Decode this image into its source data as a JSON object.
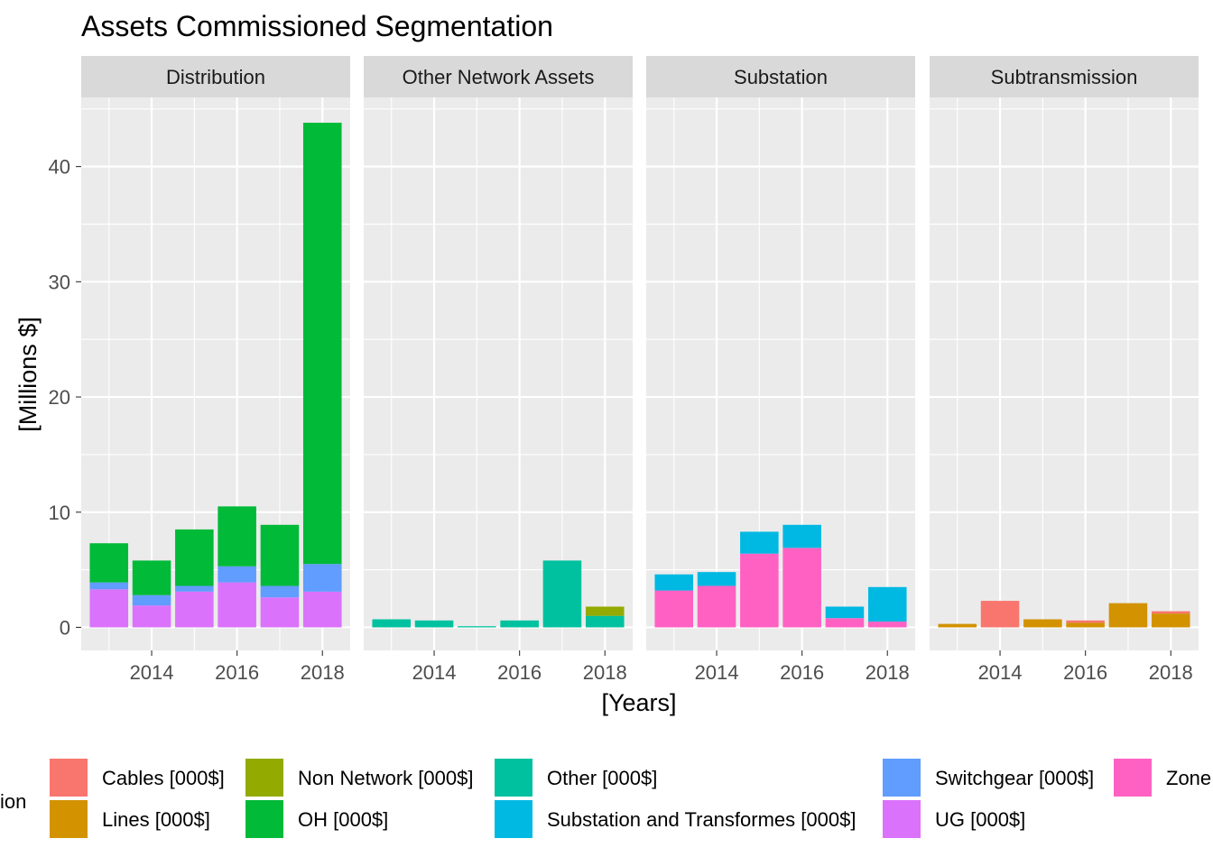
{
  "chart_data": {
    "type": "bar",
    "stacked": true,
    "title": "Assets Commissioned Segmentation",
    "xlabel": "[Years]",
    "ylabel": "[Millions $]",
    "ylim": [
      -2,
      46
    ],
    "xlim": [
      2012.35,
      2018.65
    ],
    "yticks": [
      0,
      10,
      20,
      30,
      40
    ],
    "xticks": [
      2014,
      2016,
      2018
    ],
    "grid": true,
    "legend_position": "bottom",
    "legend_title": "ion",
    "legend": [
      {
        "label": "Cables [000$]",
        "color": "#F8766D"
      },
      {
        "label": "Lines [000$]",
        "color": "#D39200"
      },
      {
        "label": "Non Network [000$]",
        "color": "#93AA00"
      },
      {
        "label": "OH [000$]",
        "color": "#00BA38"
      },
      {
        "label": "Other [000$]",
        "color": "#00C19F"
      },
      {
        "label": "Substation and Transformes [000$]",
        "color": "#00B9E3"
      },
      {
        "label": "Switchgear [000$]",
        "color": "#619CFF"
      },
      {
        "label": "UG [000$]",
        "color": "#DB72FB"
      },
      {
        "label": "Zone",
        "color": "#FF61C3"
      }
    ],
    "facets": [
      {
        "name": "Distribution",
        "x": [
          2013,
          2014,
          2015,
          2016,
          2017,
          2018
        ],
        "series": [
          {
            "name": "UG [000$]",
            "color": "#DB72FB",
            "values": [
              3.3,
              1.9,
              3.1,
              3.9,
              2.6,
              3.1
            ]
          },
          {
            "name": "Switchgear [000$]",
            "color": "#619CFF",
            "values": [
              0.6,
              0.9,
              0.5,
              1.4,
              1.0,
              2.4
            ]
          },
          {
            "name": "OH [000$]",
            "color": "#00BA38",
            "values": [
              3.4,
              3.0,
              4.9,
              5.2,
              5.3,
              38.3
            ]
          }
        ]
      },
      {
        "name": "Other Network Assets",
        "x": [
          2013,
          2014,
          2015,
          2016,
          2017,
          2018
        ],
        "series": [
          {
            "name": "Other [000$]",
            "color": "#00C19F",
            "values": [
              0.7,
              0.6,
              0.1,
              0.6,
              5.8,
              1.0
            ]
          },
          {
            "name": "Non Network [000$]",
            "color": "#93AA00",
            "values": [
              0,
              0,
              0,
              0,
              0,
              0.8
            ]
          }
        ]
      },
      {
        "name": "Substation",
        "x": [
          2013,
          2014,
          2015,
          2016,
          2017,
          2018
        ],
        "series": [
          {
            "name": "Zone",
            "color": "#FF61C3",
            "values": [
              3.2,
              3.6,
              6.4,
              6.9,
              0.8,
              0.5
            ]
          },
          {
            "name": "Substation and Transformes [000$]",
            "color": "#00B9E3",
            "values": [
              1.4,
              1.2,
              1.9,
              2.0,
              1.0,
              3.0
            ]
          }
        ]
      },
      {
        "name": "Subtransmission",
        "x": [
          2013,
          2014,
          2015,
          2016,
          2017,
          2018
        ],
        "series": [
          {
            "name": "Lines [000$]",
            "color": "#D39200",
            "values": [
              0.3,
              0,
              0.7,
              0.4,
              2.1,
              1.2
            ]
          },
          {
            "name": "Cables [000$]",
            "color": "#F8766D",
            "values": [
              0,
              2.3,
              0,
              0.2,
              0,
              0.2
            ]
          }
        ]
      }
    ]
  }
}
